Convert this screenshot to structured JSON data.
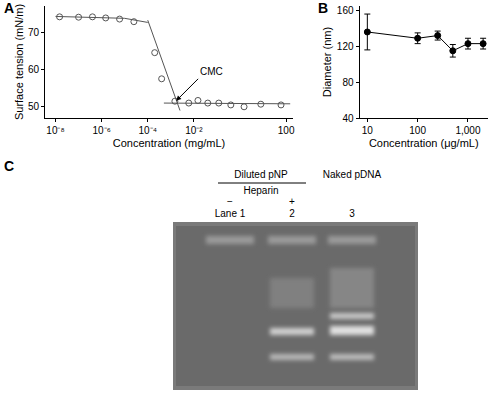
{
  "chart_data": [
    {
      "panel": "A",
      "type": "scatter",
      "log": "x",
      "grid": false,
      "x_label": "Concentration (mg/mL)",
      "y_label": "Surface tension (mN/m)",
      "xlim": [
        3.5e-09,
        200
      ],
      "ylim": [
        47,
        77
      ],
      "xticks": [
        {
          "value": 1e-08,
          "label": "10⁻⁸"
        },
        {
          "value": 1e-06,
          "label": "10⁻⁶"
        },
        {
          "value": 0.0001,
          "label": "10⁻⁴"
        },
        {
          "value": 0.01,
          "label": "10⁻²"
        },
        100
      ],
      "yticks": [
        50,
        60,
        70
      ],
      "series": [
        {
          "type": "scatter",
          "marker": "open_circle",
          "color": "#555555",
          "x": [
            1.5e-08,
            1e-07,
            4e-07,
            1.5e-06,
            6e-06,
            2.5e-05,
            0.0002,
            0.0004,
            0.0015,
            0.006,
            0.015,
            0.04,
            0.12,
            0.4,
            1.5,
            8,
            60
          ],
          "values": [
            74.1,
            74.0,
            74.1,
            73.8,
            73.5,
            72.8,
            64.5,
            57.5,
            51.5,
            51.0,
            51.7,
            51.0,
            51.0,
            50.5,
            50.0,
            50.7,
            50.5
          ]
        },
        {
          "type": "line",
          "line_style": "solid",
          "color": "#555555",
          "x": [
            1e-08,
            1e-06,
            1e-05,
            0.0001
          ],
          "values": [
            74.2,
            74.0,
            73.7,
            72.6
          ]
        },
        {
          "type": "line",
          "line_style": "solid",
          "color": "#555555",
          "x": [
            0.0001,
            0.0025
          ],
          "values": [
            73.2,
            49.0
          ]
        },
        {
          "type": "line",
          "line_style": "solid",
          "color": "#555555",
          "x": [
            0.0005,
            150
          ],
          "values": [
            51.0,
            50.8
          ]
        }
      ],
      "annotations": [
        {
          "text": "CMC",
          "x": 0.0017,
          "y": 51.6
        }
      ]
    },
    {
      "panel": "B",
      "type": "line",
      "log": "x",
      "grid": false,
      "x_label": "Concentration (μg/mL)",
      "y_label": "Diameter (nm)",
      "xlim": [
        7,
        2500
      ],
      "ylim": [
        40,
        165
      ],
      "xticks": [
        10,
        100,
        {
          "value": 1000,
          "label": "1,000"
        }
      ],
      "yticks": [
        40,
        80,
        120,
        160
      ],
      "series": [
        {
          "type": "line",
          "marker": "circle",
          "line_style": "solid",
          "color": "#000000",
          "x": [
            10,
            100,
            250,
            500,
            1000,
            2000
          ],
          "values": [
            136,
            129,
            132,
            115,
            123,
            123
          ],
          "errors": [
            20,
            6,
            5,
            7,
            6,
            6
          ]
        }
      ]
    }
  ],
  "gel": {
    "panel": "C",
    "group_label": "Diluted pNP",
    "treatment_label": "Heparin",
    "lanes": [
      {
        "label": "Lane 1",
        "treatment": "−"
      },
      {
        "label": "2",
        "treatment": "+"
      },
      {
        "label": "3",
        "title": "Naked pDNA"
      }
    ]
  }
}
